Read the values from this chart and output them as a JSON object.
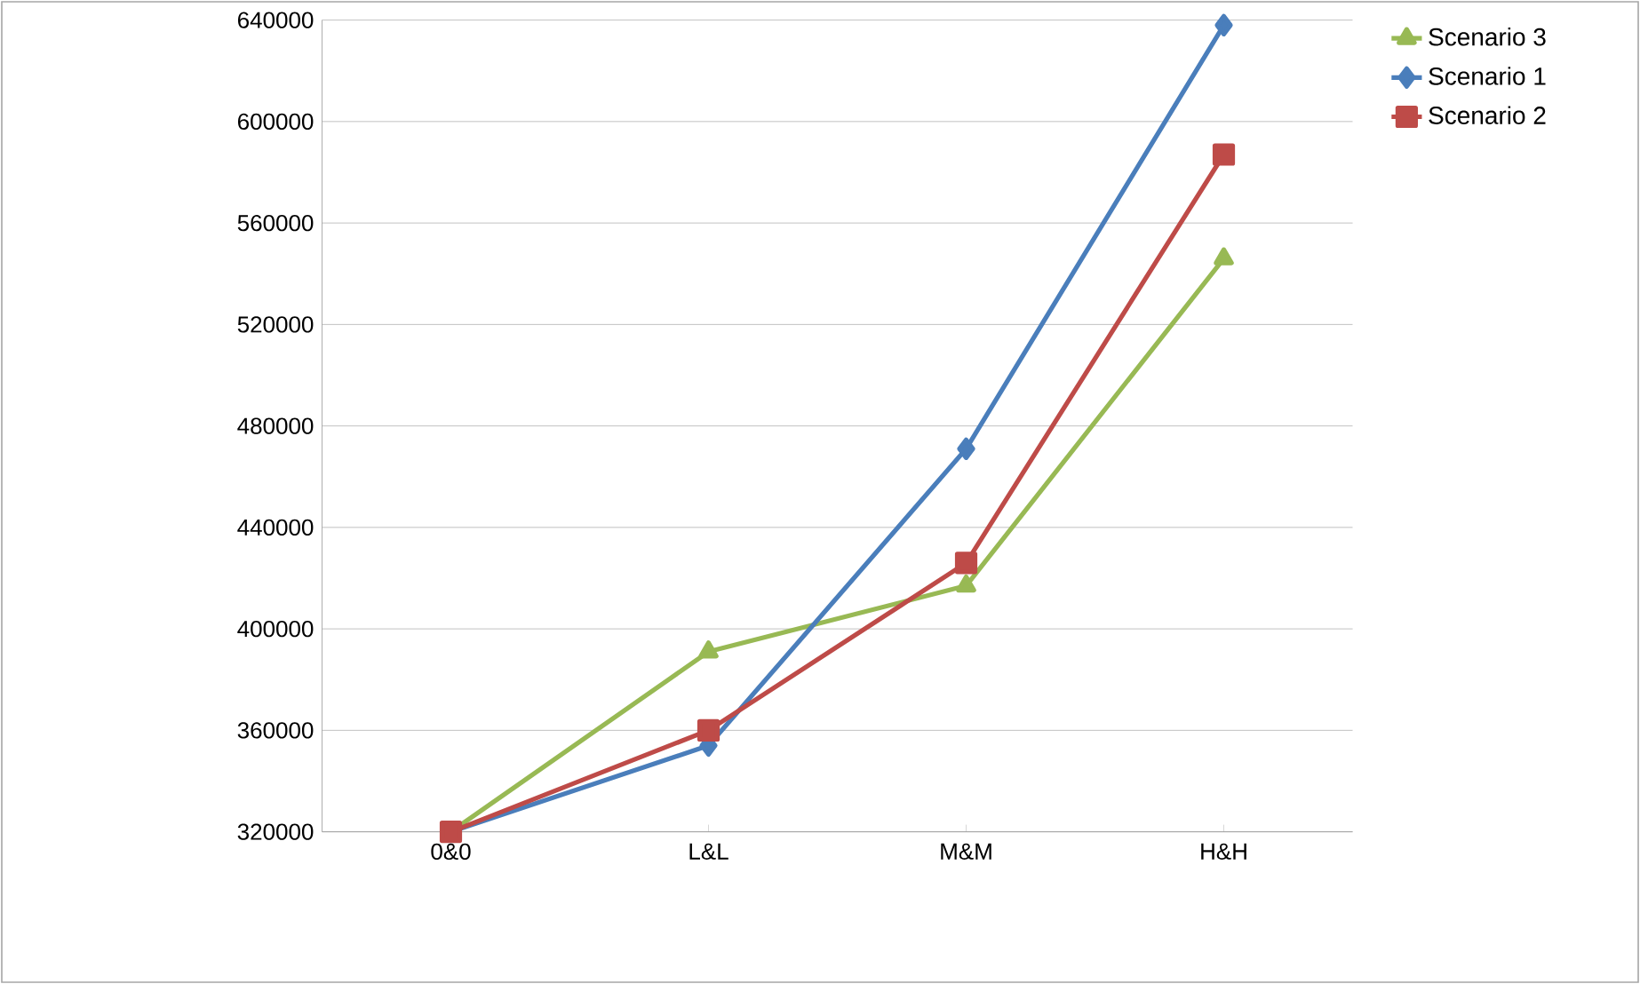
{
  "chart_data": {
    "type": "line",
    "categories": [
      "0&0",
      "L&L",
      "M&M",
      "H&H"
    ],
    "series": [
      {
        "name": "Scenario 3",
        "color": "#98b954",
        "marker": "triangle",
        "values": [
          320000,
          391000,
          417000,
          546000
        ]
      },
      {
        "name": "Scenario 1",
        "color": "#4a7ebb",
        "marker": "diamond",
        "values": [
          320000,
          354000,
          471000,
          638000
        ]
      },
      {
        "name": "Scenario 2",
        "color": "#be4b48",
        "marker": "square",
        "values": [
          320000,
          360000,
          426000,
          587000
        ]
      }
    ],
    "ylim": [
      320000,
      640000
    ],
    "yticks": [
      320000,
      360000,
      400000,
      440000,
      480000,
      520000,
      560000,
      600000,
      640000
    ],
    "grid": "y",
    "legend": "right",
    "line_style": "solid"
  }
}
